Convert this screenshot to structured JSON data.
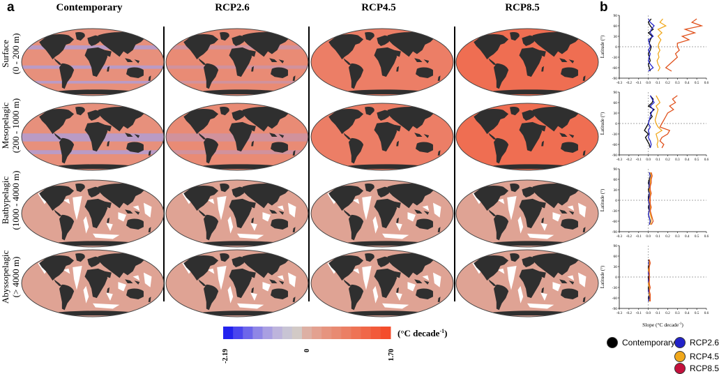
{
  "panel_a_label": "a",
  "panel_b_label": "b",
  "columns": [
    "Contemporary",
    "RCP2.6",
    "RCP4.5",
    "RCP8.5"
  ],
  "rows": [
    {
      "line1": "Surface",
      "line2": "(0 - 200 m)"
    },
    {
      "line1": "Mesopelagic",
      "line2": "(200 - 1000 m)"
    },
    {
      "line1": "Bathypelagic",
      "line2": "(1000 - 4000 m)"
    },
    {
      "line1": "Abyssopelagic",
      "line2": "(> 4000 m)"
    }
  ],
  "colorbar": {
    "min_label": "-2.19",
    "mid_label": "0",
    "max_label": "1.70",
    "unit": "(°C decade",
    "unit_sup": "-1",
    "unit_close": ")",
    "colors": [
      "#2222ee",
      "#4a45ee",
      "#6d66ea",
      "#8f86e6",
      "#a99fe2",
      "#bdb4dc",
      "#c8c4d4",
      "#d2cac6",
      "#ddb0a4",
      "#e3a190",
      "#e6947f",
      "#e88a72",
      "#eb7f64",
      "#ee7355",
      "#f06748",
      "#f25a3a",
      "#f44d2c"
    ]
  },
  "map_colors": {
    "ocean": [
      "#e7907c",
      "#e98b75",
      "#ec7e66",
      "#ef6e52"
    ],
    "deep": "#dfa394",
    "cool": "#a6a0e4",
    "land": "#2f2f2f"
  },
  "chart_data": {
    "type": "line",
    "xlabel": "Slope (°C decade",
    "xlabel_sup": "-1",
    "xlabel_close": ")",
    "ylabel": "Latitude (°)",
    "xlim": [
      -0.3,
      0.6
    ],
    "ylim": [
      -90,
      90
    ],
    "xticks": [
      "-0.3",
      "-0.2",
      "-0.1",
      "0.0",
      "0.1",
      "0.2",
      "0.3",
      "0.4",
      "0.5",
      "0.6"
    ],
    "yticks": [
      "90",
      "60",
      "30",
      "0",
      "-30",
      "-60",
      "-90"
    ],
    "legend": [
      {
        "name": "Contemporary",
        "color": "#000000"
      },
      {
        "name": "RCP2.6",
        "color": "#2323c8"
      },
      {
        "name": "RCP4.5",
        "color": "#f0a81c"
      },
      {
        "name": "RCP8.5",
        "color": "#c4103c"
      }
    ],
    "panels": [
      {
        "layer": "Surface",
        "latitude": [
          80,
          70,
          60,
          50,
          40,
          30,
          20,
          10,
          0,
          -10,
          -20,
          -30,
          -40,
          -50,
          -60,
          -70
        ],
        "series": [
          {
            "name": "Contemporary",
            "color": "#000000",
            "values": [
              0.03,
              0.0,
              0.02,
              0.05,
              0.0,
              0.04,
              0.02,
              0.01,
              0.03,
              0.02,
              0.0,
              0.01,
              0.02,
              0.0,
              0.01,
              0.02
            ]
          },
          {
            "name": "RCP2.6",
            "color": "#2323c8",
            "values": [
              0.0,
              0.02,
              0.06,
              0.03,
              0.02,
              0.05,
              0.0,
              0.01,
              0.02,
              0.0,
              0.02,
              0.01,
              0.0,
              0.02,
              0.05,
              0.0
            ]
          },
          {
            "name": "RCP4.5",
            "color": "#f0a81c",
            "values": [
              0.15,
              0.12,
              0.18,
              0.1,
              0.14,
              0.1,
              0.13,
              0.11,
              0.1,
              0.12,
              0.1,
              0.11,
              0.09,
              0.1,
              0.12,
              0.1
            ]
          },
          {
            "name": "RCP8.5",
            "color": "#e0511c",
            "values": [
              0.5,
              0.45,
              0.55,
              0.38,
              0.48,
              0.35,
              0.42,
              0.3,
              0.3,
              0.32,
              0.28,
              0.3,
              0.26,
              0.22,
              0.18,
              0.24
            ]
          }
        ]
      },
      {
        "layer": "Mesopelagic",
        "latitude": [
          80,
          70,
          60,
          50,
          40,
          30,
          20,
          10,
          0,
          -10,
          -20,
          -30,
          -40,
          -50,
          -60,
          -70
        ],
        "series": [
          {
            "name": "Contemporary",
            "color": "#000000",
            "values": [
              0.02,
              0.05,
              0.04,
              0.0,
              0.06,
              0.02,
              0.04,
              0.01,
              0.0,
              -0.02,
              -0.04,
              0.0,
              -0.03,
              -0.01,
              0.01,
              0.02
            ]
          },
          {
            "name": "RCP2.6",
            "color": "#2323c8",
            "values": [
              0.02,
              0.04,
              0.06,
              0.02,
              0.05,
              0.03,
              0.02,
              0.01,
              0.0,
              0.02,
              0.0,
              0.01,
              0.0,
              0.02,
              0.03,
              0.02
            ]
          },
          {
            "name": "RCP4.5",
            "color": "#f0a81c",
            "values": [
              0.08,
              0.1,
              0.12,
              0.08,
              0.1,
              0.09,
              0.08,
              0.07,
              0.08,
              0.1,
              0.14,
              0.08,
              0.09,
              0.1,
              0.09,
              0.1
            ]
          },
          {
            "name": "RCP8.5",
            "color": "#e0511c",
            "values": [
              0.3,
              0.25,
              0.28,
              0.22,
              0.26,
              0.2,
              0.18,
              0.16,
              0.14,
              0.12,
              0.22,
              0.2,
              0.14,
              0.12,
              0.16,
              0.14
            ]
          }
        ]
      },
      {
        "layer": "Bathypelagic",
        "latitude": [
          80,
          70,
          60,
          50,
          40,
          30,
          20,
          10,
          0,
          -10,
          -20,
          -30,
          -40,
          -50,
          -60,
          -70
        ],
        "series": [
          {
            "name": "Contemporary",
            "color": "#000000",
            "values": [
              0.01,
              0.02,
              0.01,
              0.0,
              0.01,
              0.0,
              0.01,
              0.0,
              0.0,
              0.01,
              0.0,
              0.01,
              0.0,
              0.01,
              0.02,
              0.01
            ]
          },
          {
            "name": "RCP2.6",
            "color": "#2323c8",
            "values": [
              0.01,
              0.02,
              0.02,
              0.01,
              0.01,
              0.01,
              0.01,
              0.01,
              0.0,
              0.01,
              0.01,
              0.01,
              0.0,
              0.01,
              0.02,
              0.01
            ]
          },
          {
            "name": "RCP4.5",
            "color": "#f0a81c",
            "values": [
              0.02,
              0.03,
              0.02,
              0.02,
              0.02,
              0.01,
              0.02,
              0.02,
              0.01,
              0.02,
              0.02,
              0.02,
              0.02,
              0.03,
              0.03,
              0.02
            ]
          },
          {
            "name": "RCP8.5",
            "color": "#e0511c",
            "values": [
              0.03,
              0.04,
              0.03,
              0.03,
              0.02,
              0.02,
              0.03,
              0.02,
              0.02,
              0.02,
              0.03,
              0.02,
              0.03,
              0.04,
              0.05,
              0.03
            ]
          }
        ]
      },
      {
        "layer": "Abyssopelagic",
        "latitude": [
          50,
          40,
          30,
          20,
          10,
          0,
          -10,
          -20,
          -30,
          -40,
          -50,
          -60,
          -70
        ],
        "series": [
          {
            "name": "Contemporary",
            "color": "#000000",
            "values": [
              0.0,
              0.01,
              0.0,
              0.0,
              0.01,
              0.0,
              0.0,
              0.01,
              0.0,
              0.0,
              0.01,
              0.0,
              0.01
            ]
          },
          {
            "name": "RCP2.6",
            "color": "#2323c8",
            "values": [
              0.01,
              0.0,
              0.01,
              0.0,
              0.0,
              0.01,
              0.0,
              0.0,
              0.01,
              0.0,
              0.01,
              0.01,
              0.0
            ]
          },
          {
            "name": "RCP4.5",
            "color": "#f0a81c",
            "values": [
              0.01,
              0.01,
              0.01,
              0.0,
              0.01,
              0.01,
              0.01,
              0.0,
              0.01,
              0.01,
              0.01,
              0.02,
              0.01
            ]
          },
          {
            "name": "RCP8.5",
            "color": "#e0511c",
            "values": [
              0.01,
              0.02,
              0.01,
              0.01,
              0.01,
              0.01,
              0.01,
              0.01,
              0.02,
              0.01,
              0.02,
              0.02,
              0.02
            ]
          }
        ]
      }
    ]
  }
}
